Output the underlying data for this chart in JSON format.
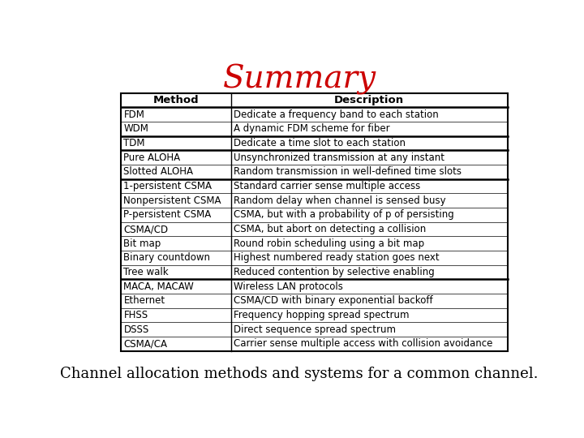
{
  "title": "Summary",
  "title_color": "#cc0000",
  "title_fontsize": 28,
  "subtitle": "Channel allocation methods and systems for a common channel.",
  "subtitle_fontsize": 13,
  "col_headers": [
    "Method",
    "Description"
  ],
  "rows": [
    [
      "FDM",
      "Dedicate a frequency band to each station"
    ],
    [
      "WDM",
      "A dynamic FDM scheme for fiber"
    ],
    [
      "TDM",
      "Dedicate a time slot to each station"
    ],
    [
      "Pure ALOHA",
      "Unsynchronized transmission at any instant"
    ],
    [
      "Slotted ALOHA",
      "Random transmission in well-defined time slots"
    ],
    [
      "1-persistent CSMA",
      "Standard carrier sense multiple access"
    ],
    [
      "Nonpersistent CSMA",
      "Random delay when channel is sensed busy"
    ],
    [
      "P-persistent CSMA",
      "CSMA, but with a probability of p of persisting"
    ],
    [
      "CSMA/CD",
      "CSMA, but abort on detecting a collision"
    ],
    [
      "Bit map",
      "Round robin scheduling using a bit map"
    ],
    [
      "Binary countdown",
      "Highest numbered ready station goes next"
    ],
    [
      "Tree walk",
      "Reduced contention by selective enabling"
    ],
    [
      "MACA, MACAW",
      "Wireless LAN protocols"
    ],
    [
      "Ethernet",
      "CSMA/CD with binary exponential backoff"
    ],
    [
      "FHSS",
      "Frequency hopping spread spectrum"
    ],
    [
      "DSSS",
      "Direct sequence spread spectrum"
    ],
    [
      "CSMA/CA",
      "Carrier sense multiple access with collision avoidance"
    ]
  ],
  "thick_borders_after_rows": [
    1,
    2,
    4,
    11
  ],
  "background_color": "#ffffff",
  "cell_fontsize": 8.5,
  "header_fontsize": 9.5
}
